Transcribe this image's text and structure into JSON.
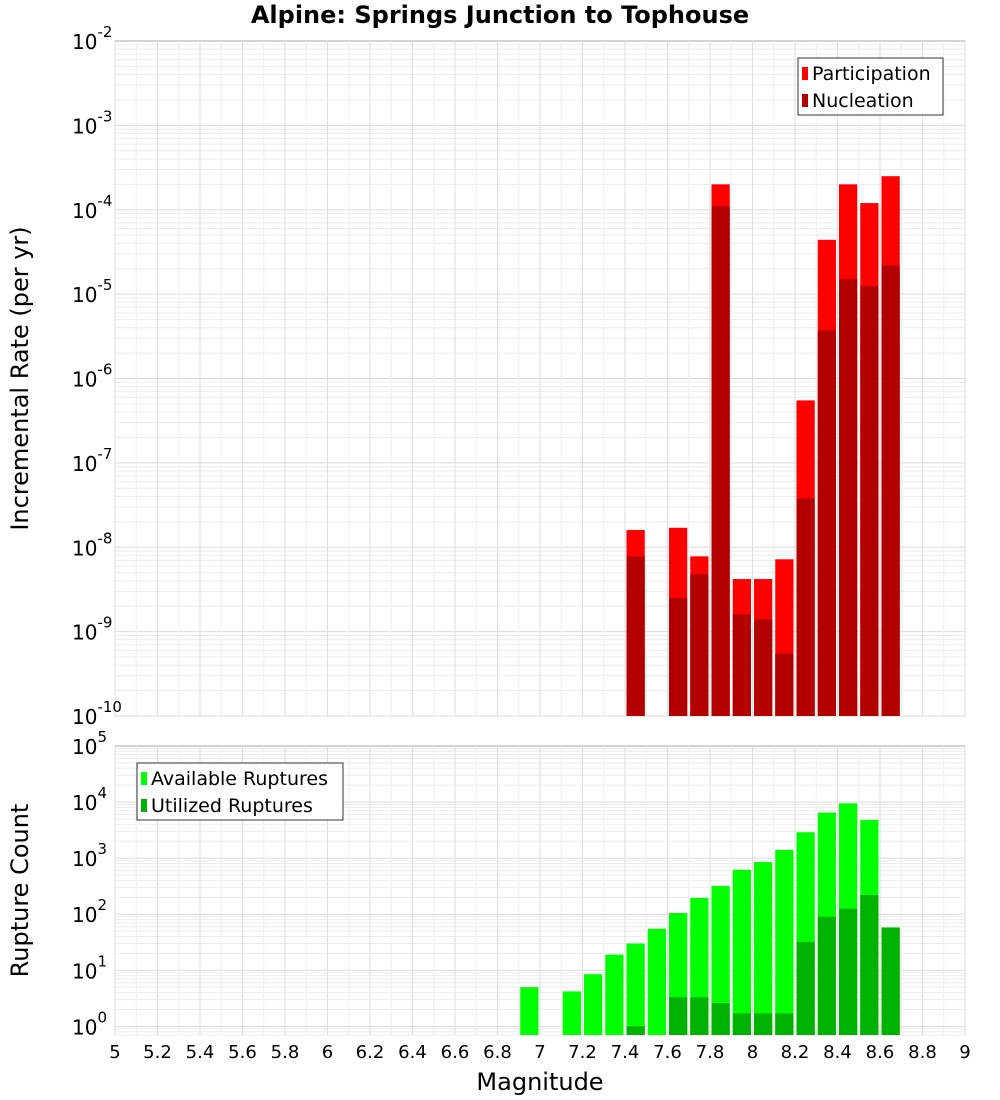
{
  "chart_data": {
    "title": "Alpine: Springs Junction to Tophouse",
    "xlabel": "Magnitude",
    "xlim": [
      5,
      9
    ],
    "xticks": [
      "5",
      "5.2",
      "5.4",
      "5.6",
      "5.8",
      "6",
      "6.2",
      "6.4",
      "6.6",
      "6.8",
      "7",
      "7.2",
      "7.4",
      "7.6",
      "7.8",
      "8",
      "8.2",
      "8.4",
      "8.6",
      "8.8",
      "9"
    ],
    "panels": [
      {
        "type": "bar",
        "ylabel": "Incremental Rate (per yr)",
        "yscale": "log",
        "ylim": [
          1e-10,
          0.01
        ],
        "ytick_exponents": [
          -10,
          -9,
          -8,
          -7,
          -6,
          -5,
          -4,
          -3,
          -2
        ],
        "grid": true,
        "legend_position": "top-right",
        "x": [
          7.45,
          7.65,
          7.75,
          7.85,
          7.95,
          8.05,
          8.15,
          8.25,
          8.35,
          8.45,
          8.55,
          8.65
        ],
        "series": [
          {
            "name": "Participation",
            "color": "#ff0000",
            "values": [
              1.6e-08,
              1.7e-08,
              7.8e-09,
              0.0002,
              4.2e-09,
              4.2e-09,
              7.2e-09,
              5.5e-07,
              4.4e-05,
              0.0002,
              0.00012,
              0.00025
            ]
          },
          {
            "name": "Nucleation",
            "color": "#b20000",
            "values": [
              7.8e-09,
              2.5e-09,
              4.8e-09,
              0.00011,
              1.6e-09,
              1.4e-09,
              5.5e-10,
              3.8e-08,
              3.7e-06,
              1.5e-05,
              1.25e-05,
              2.2e-05
            ]
          }
        ]
      },
      {
        "type": "bar",
        "ylabel": "Rupture Count",
        "yscale": "log",
        "ylim": [
          0.7,
          100000
        ],
        "ytick_exponents": [
          0,
          1,
          2,
          3,
          4,
          5
        ],
        "grid": true,
        "legend_position": "top-left",
        "x": [
          6.95,
          7.15,
          7.25,
          7.35,
          7.45,
          7.55,
          7.65,
          7.75,
          7.85,
          7.95,
          8.05,
          8.15,
          8.25,
          8.35,
          8.45,
          8.55,
          8.65
        ],
        "series": [
          {
            "name": "Available Ruptures",
            "color": "#00ff00",
            "values": [
              5,
              4.2,
              8.5,
              19,
              30,
              55,
              105,
              195,
              320,
              620,
              850,
              1400,
              2900,
              6500,
              9500,
              4800,
              55
            ]
          },
          {
            "name": "Utilized Ruptures",
            "color": "#00b200",
            "values": [
              0,
              0,
              0,
              0,
              1,
              0,
              3.3,
              3.3,
              2.6,
              1.7,
              1.7,
              1.7,
              32,
              90,
              125,
              220,
              58
            ]
          }
        ]
      }
    ]
  }
}
